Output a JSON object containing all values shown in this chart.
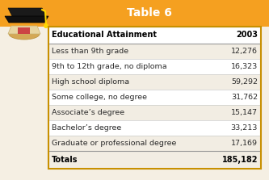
{
  "title": "Table 6",
  "header": [
    "Educational Attainment",
    "2003"
  ],
  "rows": [
    [
      "Less than 9th grade",
      "12,276"
    ],
    [
      "9th to 12th grade, no diploma",
      "16,323"
    ],
    [
      "High school diploma",
      "59,292"
    ],
    [
      "Some college, no degree",
      "31,762"
    ],
    [
      "Associate’s degree",
      "15,147"
    ],
    [
      "Bachelor’s degree",
      "33,213"
    ],
    [
      "Graduate or professional degree",
      "17,169"
    ]
  ],
  "totals": [
    "Totals",
    "185,182"
  ],
  "title_bg": "#F5A020",
  "row_bg_light": "#F2EDE3",
  "row_bg_white": "#FFFFFF",
  "border_dark": "#999999",
  "border_light": "#CCCCCC",
  "outer_border": "#C89000",
  "fig_bg": "#F5EFE3",
  "title_fontsize": 10,
  "header_fontsize": 7,
  "row_fontsize": 6.8,
  "icon_text": "🎓"
}
